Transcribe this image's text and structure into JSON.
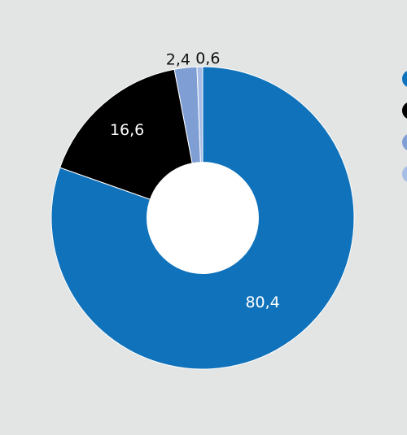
{
  "chart_data": {
    "type": "pie",
    "donut": true,
    "title": "",
    "values": [
      80.4,
      16.6,
      2.4,
      0.6
    ],
    "labels": [
      "80,4",
      "16,6",
      "2,4",
      "0,6"
    ],
    "colors": [
      "#0f72bb",
      "#000000",
      "#7f9fd4",
      "#a7bde6"
    ],
    "label_placement": [
      "inside",
      "inside",
      "outside",
      "outside"
    ],
    "legend": {
      "placement": "right",
      "entries_text_visible": false,
      "colors": [
        "#0f72bb",
        "#000000",
        "#7f9fd4",
        "#a7bde6"
      ]
    }
  }
}
